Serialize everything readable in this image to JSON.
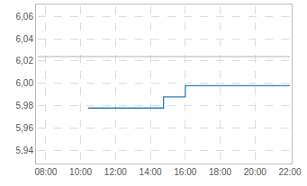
{
  "chart_data": {
    "type": "line",
    "line_style": "step",
    "x": [
      10.42,
      14.75,
      16.0,
      22.0
    ],
    "values": [
      5.978,
      5.988,
      5.998,
      5.998
    ],
    "color": "#2a7fc0",
    "reference_line": {
      "value": 6.024,
      "color": "#b0b0b0"
    },
    "xlim": [
      7.54,
      22
    ],
    "xticks": [
      {
        "value": 8,
        "label": "08:00"
      },
      {
        "value": 10,
        "label": "10:00"
      },
      {
        "value": 12,
        "label": "12:00"
      },
      {
        "value": 14,
        "label": "14:00"
      },
      {
        "value": 16,
        "label": "16:00"
      },
      {
        "value": 18,
        "label": "18:00"
      },
      {
        "value": 20,
        "label": "20:00"
      },
      {
        "value": 22,
        "label": "22:00"
      }
    ],
    "ylim": [
      5.93,
      6.069
    ],
    "yticks": [
      {
        "value": 5.94,
        "label": "5,94"
      },
      {
        "value": 5.96,
        "label": "5,96"
      },
      {
        "value": 5.98,
        "label": "5,98"
      },
      {
        "value": 6.0,
        "label": "6,00"
      },
      {
        "value": 6.02,
        "label": "6,02"
      },
      {
        "value": 6.04,
        "label": "6,04"
      },
      {
        "value": 6.06,
        "label": "6,06"
      }
    ],
    "grid": true
  }
}
